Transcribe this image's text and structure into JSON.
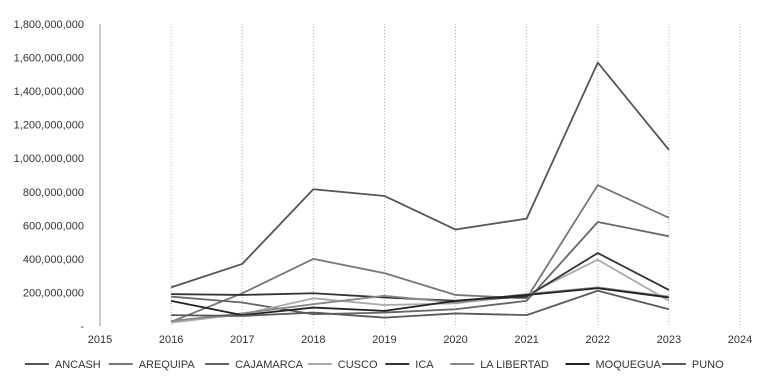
{
  "chart_data": {
    "type": "line",
    "title": "",
    "xlabel": "",
    "ylabel": "",
    "x": [
      2016,
      2017,
      2018,
      2019,
      2020,
      2021,
      2022,
      2023
    ],
    "xlim": [
      2015,
      2024
    ],
    "xticks": [
      "2015",
      "2016",
      "2017",
      "2018",
      "2019",
      "2020",
      "2021",
      "2022",
      "2023",
      "2024"
    ],
    "ylim": [
      0,
      1800000000
    ],
    "yticks": [
      "",
      "200,000,000",
      "400,000,000",
      "600,000,000",
      "800,000,000",
      "1,000,000,000",
      "1,200,000,000",
      "1,400,000,000",
      "1,600,000,000",
      "1,800,000,000"
    ],
    "grid": "vertical",
    "legend": "bottom",
    "series": [
      {
        "name": "ANCASH",
        "color": "#555555",
        "values": [
          230000000,
          370000000,
          815000000,
          775000000,
          575000000,
          640000000,
          1570000000,
          1050000000
        ]
      },
      {
        "name": "AREQUIPA",
        "color": "#777777",
        "values": [
          25000000,
          195000000,
          400000000,
          315000000,
          185000000,
          165000000,
          840000000,
          645000000
        ]
      },
      {
        "name": "CAJAMARCA",
        "color": "#666666",
        "values": [
          175000000,
          140000000,
          70000000,
          80000000,
          100000000,
          150000000,
          620000000,
          535000000
        ]
      },
      {
        "name": "CUSCO",
        "color": "#aaaaaa",
        "values": [
          20000000,
          70000000,
          165000000,
          125000000,
          135000000,
          185000000,
          395000000,
          150000000
        ]
      },
      {
        "name": "ICA",
        "color": "#333333",
        "values": [
          190000000,
          185000000,
          195000000,
          170000000,
          150000000,
          175000000,
          435000000,
          215000000
        ]
      },
      {
        "name": "LA LIBERTAD",
        "color": "#888888",
        "values": [
          30000000,
          75000000,
          130000000,
          180000000,
          140000000,
          190000000,
          230000000,
          175000000
        ]
      },
      {
        "name": "MOQUEGUA",
        "color": "#222222",
        "values": [
          150000000,
          65000000,
          110000000,
          90000000,
          150000000,
          185000000,
          225000000,
          170000000
        ]
      },
      {
        "name": "PUNO",
        "color": "#5a5a5a",
        "values": [
          65000000,
          60000000,
          80000000,
          50000000,
          75000000,
          65000000,
          210000000,
          100000000
        ]
      }
    ]
  }
}
